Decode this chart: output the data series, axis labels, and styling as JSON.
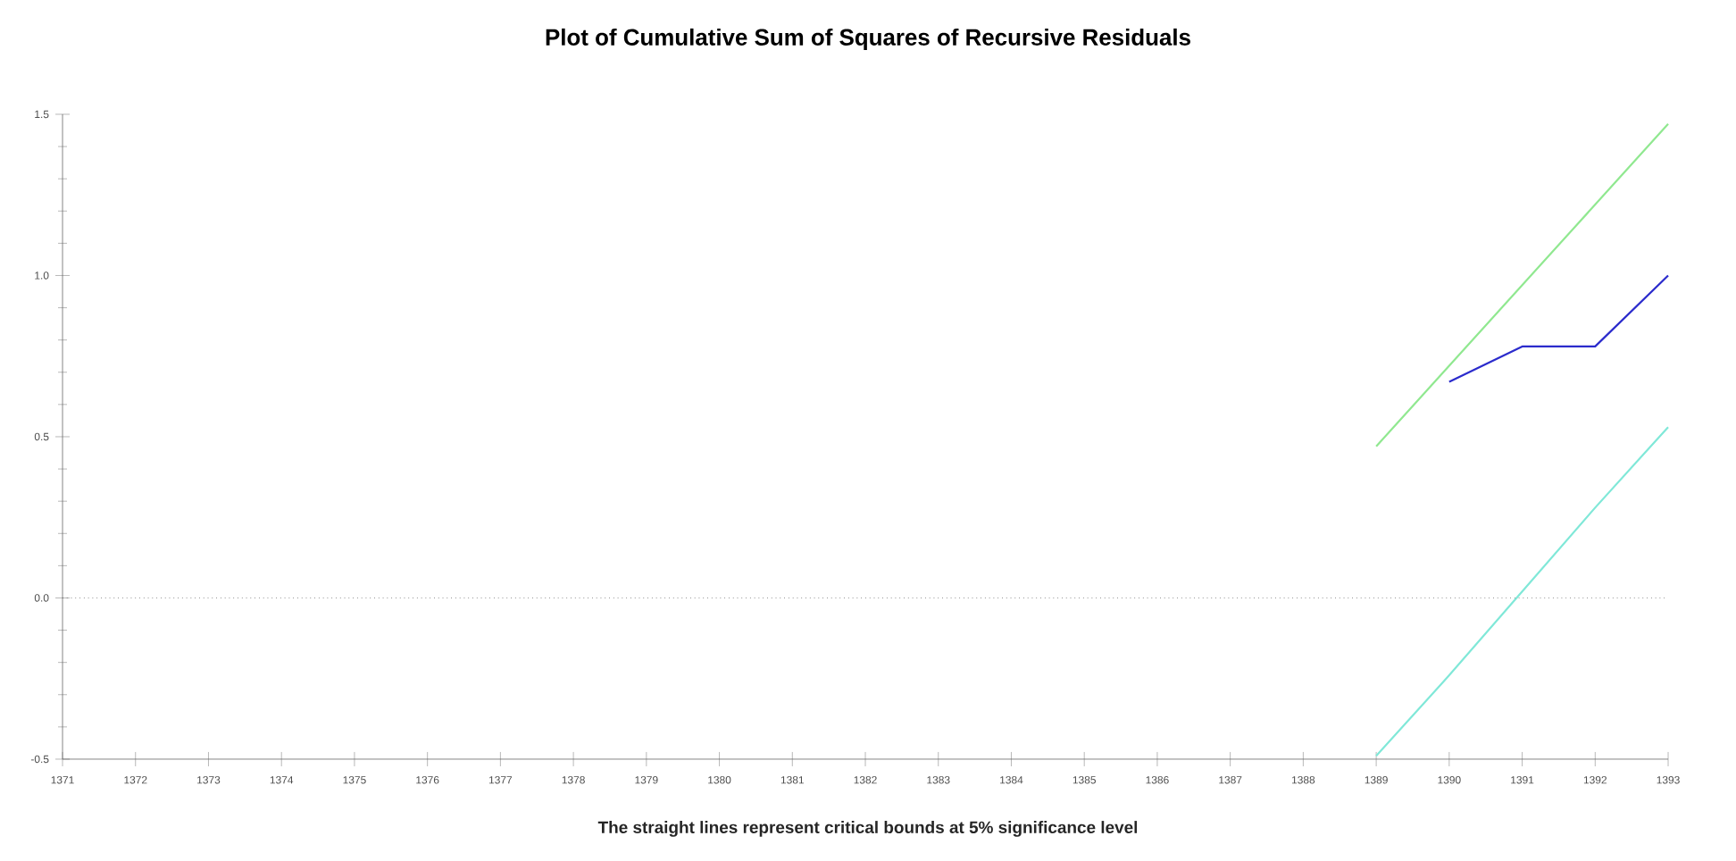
{
  "chart_data": {
    "type": "line",
    "title": "Plot of Cumulative Sum of Squares of Recursive Residuals",
    "annotations": [
      "The straight lines represent critical bounds at 5% significance level"
    ],
    "x": [
      1389,
      1390,
      1391,
      1392,
      1393
    ],
    "series": [
      {
        "color": "#2b2bcc",
        "values": [
          null,
          0.67,
          0.78,
          0.78,
          1.0
        ]
      },
      {
        "color": "#90e890",
        "values": [
          0.47,
          0.72,
          0.97,
          1.22,
          1.47
        ]
      },
      {
        "color": "#80e8d8",
        "values": [
          -0.49,
          -0.24,
          0.02,
          0.28,
          0.53
        ]
      }
    ],
    "xlim": [
      1371,
      1393
    ],
    "xticks": [
      1371,
      1372,
      1373,
      1374,
      1375,
      1376,
      1377,
      1378,
      1379,
      1380,
      1381,
      1382,
      1383,
      1384,
      1385,
      1386,
      1387,
      1388,
      1389,
      1390,
      1391,
      1392,
      1393
    ],
    "ylim": [
      -0.5,
      1.5
    ],
    "yticks": [
      {
        "value": -0.5,
        "label": "-0.5"
      },
      {
        "value": 0.0,
        "label": "0.0"
      },
      {
        "value": 0.5,
        "label": "0.5"
      },
      {
        "value": 1.0,
        "label": "1.0"
      },
      {
        "value": 1.5,
        "label": "1.5"
      }
    ],
    "ref_lines": [
      {
        "axis": "y",
        "value": 0,
        "line_style": "dotted",
        "color": "#555555"
      }
    ],
    "marker": "none"
  }
}
